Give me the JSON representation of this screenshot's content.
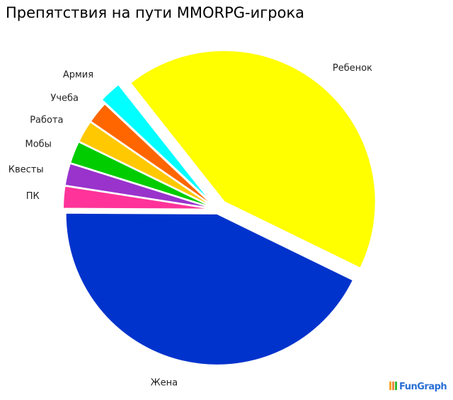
{
  "chart_data": {
    "type": "pie",
    "title": "Препятствия на пути MMORPG-игрока",
    "slices": [
      {
        "label": "Ребенок",
        "value": 18,
        "color": "#ffff00"
      },
      {
        "label": "Армия",
        "value": 1,
        "color": "#00ffff"
      },
      {
        "label": "Учеба",
        "value": 1,
        "color": "#ff6600"
      },
      {
        "label": "Работа",
        "value": 1,
        "color": "#ffc800"
      },
      {
        "label": "Мобы",
        "value": 1,
        "color": "#00cc00"
      },
      {
        "label": "Квесты",
        "value": 1,
        "color": "#9933cc"
      },
      {
        "label": "ПК",
        "value": 1,
        "color": "#ff3399"
      },
      {
        "label": "Жена",
        "value": 18,
        "color": "#0033cc"
      }
    ]
  },
  "logo": "FunGraph"
}
